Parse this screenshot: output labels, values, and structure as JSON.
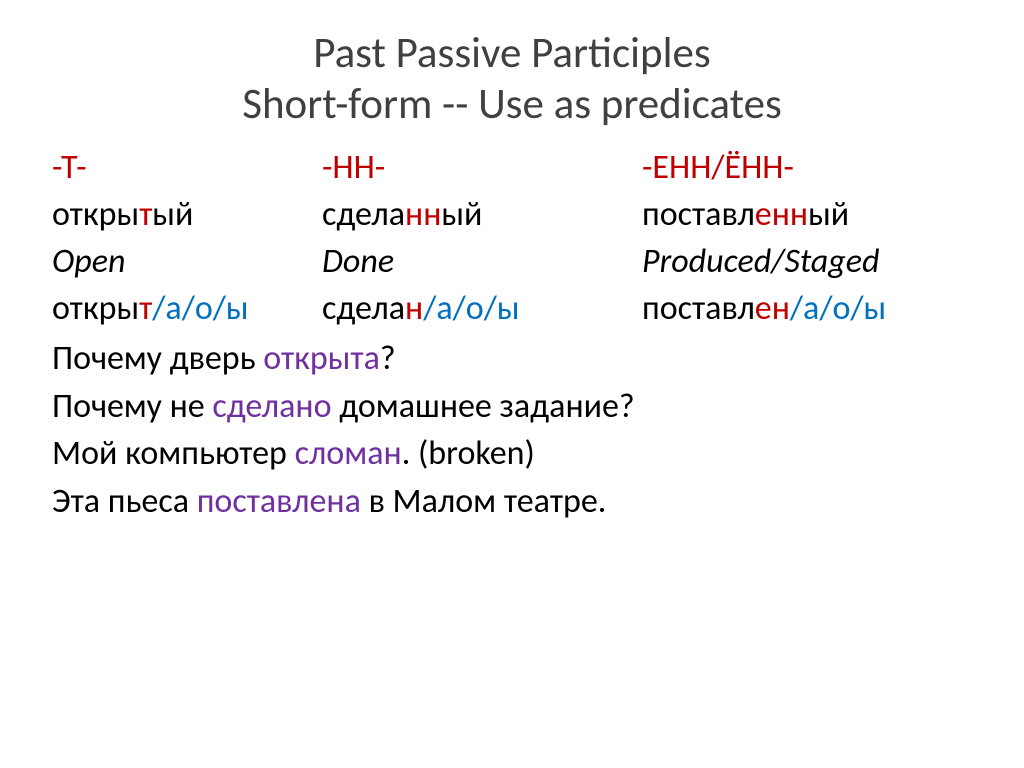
{
  "title_line1": "Past Passive Participles",
  "title_line2": "Short-form  --  Use as predicates",
  "col1": {
    "suffix": "-Т-",
    "adj_pre": "откры",
    "adj_suf": "т",
    "adj_post": "ый",
    "gloss": "Open",
    "sf_stem": "откры",
    "sf_suf": "т",
    "sf_end": "/а/о/ы"
  },
  "col2": {
    "suffix": "-НН-",
    "adj_pre": "сдела",
    "adj_suf": "нн",
    "adj_post": "ый",
    "gloss": "Done",
    "sf_stem": "сдела",
    "sf_suf": "н",
    "sf_end": "/а/о/ы"
  },
  "col3": {
    "suffix": "-ЕНН/ЁНН-",
    "adj_pre": "поставл",
    "adj_suf": "енн",
    "adj_post": "ый",
    "gloss": "Produced/Staged",
    "sf_stem": "поставл",
    "sf_suf": "ен",
    "sf_end": "/а/о/ы"
  },
  "ex1_a": "Почему дверь ",
  "ex1_b": "открыта",
  "ex1_c": "?",
  "ex2_a": "Почему не ",
  "ex2_b": "сделано",
  "ex2_c": " домашнее задание?",
  "ex3_a": "Мой компьютер ",
  "ex3_b": "сломан",
  "ex3_c": ". (broken)",
  "ex4_a": "Эта пьеса ",
  "ex4_b": "поставлена",
  "ex4_c": " в Малом театре.",
  "colors": {
    "red": "#c00000",
    "blue": "#0070c0",
    "purple": "#7030a0",
    "title": "#404040",
    "text": "#000000",
    "bg": "#ffffff"
  },
  "font_sizes": {
    "title_pt": 32,
    "body_pt": 26
  }
}
